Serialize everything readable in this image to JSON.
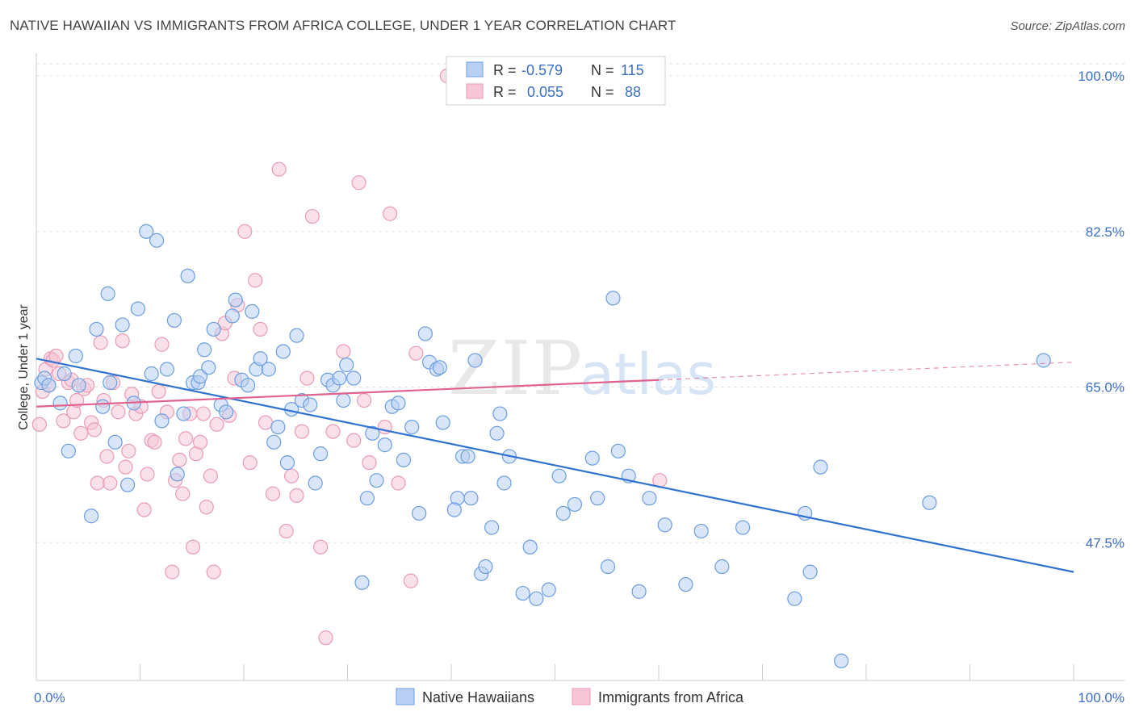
{
  "title": "NATIVE HAWAIIAN VS IMMIGRANTS FROM AFRICA COLLEGE, UNDER 1 YEAR CORRELATION CHART",
  "source": "Source: ZipAtlas.com",
  "watermark": {
    "zip": "ZIP",
    "atlas": "atlas"
  },
  "chart_data": {
    "type": "scatter",
    "title": "NATIVE HAWAIIAN VS IMMIGRANTS FROM AFRICA COLLEGE, UNDER 1 YEAR CORRELATION CHART",
    "xlabel": "",
    "ylabel": "College, Under 1 year",
    "xlim": [
      0,
      100
    ],
    "ylim": [
      32,
      102
    ],
    "x_tick_labels": [
      "0.0%",
      "100.0%"
    ],
    "y_ticks": [
      47.5,
      65.0,
      82.5,
      100.0
    ],
    "y_tick_labels": [
      "47.5%",
      "65.0%",
      "82.5%",
      "100.0%"
    ],
    "grid": "horizontal dashed",
    "legend_placement": "top-center",
    "series": [
      {
        "name": "Native Hawaiians",
        "color": "#6b9ee0",
        "fill": "#b9d0f3",
        "line_color": "#3072d0",
        "R": "-0.579",
        "N": "115",
        "trend": {
          "x": [
            0,
            100
          ],
          "y": [
            68.2,
            44.2
          ]
        },
        "points": [
          [
            0.5,
            65.5
          ],
          [
            0.8,
            66
          ],
          [
            1.2,
            65.2
          ],
          [
            2.3,
            63.2
          ],
          [
            2.7,
            66.5
          ],
          [
            3.1,
            57.8
          ],
          [
            3.8,
            68.5
          ],
          [
            4.1,
            65.2
          ],
          [
            5.3,
            50.5
          ],
          [
            5.8,
            71.5
          ],
          [
            6.4,
            62.8
          ],
          [
            6.9,
            75.5
          ],
          [
            7.1,
            65.5
          ],
          [
            7.6,
            58.8
          ],
          [
            8.3,
            72
          ],
          [
            8.8,
            54
          ],
          [
            9.4,
            63.2
          ],
          [
            9.8,
            73.8
          ],
          [
            10.6,
            82.5
          ],
          [
            11.1,
            66.5
          ],
          [
            11.6,
            81.5
          ],
          [
            12.1,
            61.2
          ],
          [
            12.6,
            67
          ],
          [
            13.3,
            72.5
          ],
          [
            13.6,
            55.2
          ],
          [
            14.2,
            62
          ],
          [
            14.6,
            77.5
          ],
          [
            15.1,
            65.5
          ],
          [
            15.6,
            65.5
          ],
          [
            15.8,
            66.2
          ],
          [
            16.2,
            69.2
          ],
          [
            16.6,
            67.2
          ],
          [
            17.1,
            71.5
          ],
          [
            17.8,
            63
          ],
          [
            18.3,
            62.2
          ],
          [
            18.9,
            73
          ],
          [
            19.2,
            74.8
          ],
          [
            19.8,
            65.8
          ],
          [
            20.4,
            65.2
          ],
          [
            20.8,
            73.5
          ],
          [
            21.2,
            67
          ],
          [
            21.6,
            68.2
          ],
          [
            22.4,
            67
          ],
          [
            22.9,
            58.8
          ],
          [
            23.3,
            60.5
          ],
          [
            23.8,
            69
          ],
          [
            24.2,
            56.5
          ],
          [
            24.6,
            62.5
          ],
          [
            25.1,
            70.8
          ],
          [
            25.6,
            63.5
          ],
          [
            26.4,
            63
          ],
          [
            26.9,
            54.2
          ],
          [
            27.4,
            57.5
          ],
          [
            28.1,
            65.8
          ],
          [
            28.6,
            65.2
          ],
          [
            29.2,
            66
          ],
          [
            29.6,
            63.5
          ],
          [
            29.9,
            67.5
          ],
          [
            30.6,
            66
          ],
          [
            31.4,
            43
          ],
          [
            31.9,
            52.5
          ],
          [
            32.4,
            59.8
          ],
          [
            32.8,
            54.5
          ],
          [
            33.6,
            58.5
          ],
          [
            34.3,
            62.8
          ],
          [
            34.9,
            63.2
          ],
          [
            35.4,
            56.8
          ],
          [
            36.2,
            60.5
          ],
          [
            36.9,
            50.8
          ],
          [
            37.5,
            71
          ],
          [
            37.9,
            67.8
          ],
          [
            38.6,
            67
          ],
          [
            38.9,
            67.2
          ],
          [
            39.2,
            61
          ],
          [
            40.6,
            52.5
          ],
          [
            40.3,
            51.2
          ],
          [
            41.1,
            57.2
          ],
          [
            41.6,
            57.2
          ],
          [
            41.9,
            52.5
          ],
          [
            42.3,
            68
          ],
          [
            42.9,
            44
          ],
          [
            43.3,
            44.8
          ],
          [
            43.9,
            49.2
          ],
          [
            44.4,
            59.8
          ],
          [
            44.7,
            62
          ],
          [
            45.1,
            54.2
          ],
          [
            45.6,
            57.2
          ],
          [
            46.9,
            41.8
          ],
          [
            47.6,
            47
          ],
          [
            48.2,
            41.2
          ],
          [
            49.4,
            42.2
          ],
          [
            50.4,
            55
          ],
          [
            50.8,
            50.8
          ],
          [
            51.9,
            51.8
          ],
          [
            53.6,
            57
          ],
          [
            54.1,
            52.5
          ],
          [
            55.1,
            44.8
          ],
          [
            55.6,
            75
          ],
          [
            56.1,
            57.8
          ],
          [
            57.1,
            55
          ],
          [
            58.1,
            42
          ],
          [
            59.1,
            52.5
          ],
          [
            60.6,
            49.5
          ],
          [
            62.6,
            42.8
          ],
          [
            64.1,
            48.8
          ],
          [
            66.1,
            44.8
          ],
          [
            68.1,
            49.2
          ],
          [
            73.1,
            41.2
          ],
          [
            74.1,
            50.8
          ],
          [
            74.6,
            44.2
          ],
          [
            75.6,
            56
          ],
          [
            77.6,
            34.2
          ],
          [
            86.1,
            52
          ],
          [
            97.1,
            68
          ]
        ]
      },
      {
        "name": "Immigrants from Africa",
        "color": "#e99bb5",
        "fill": "#f6c6d6",
        "line_color": "#e0628e",
        "R": "0.055",
        "N": "88",
        "trend": {
          "x": [
            0,
            60
          ],
          "y": [
            62.8,
            65.8
          ]
        },
        "points": [
          [
            0.3,
            60.8
          ],
          [
            0.6,
            64.5
          ],
          [
            0.9,
            67
          ],
          [
            1.2,
            65.2
          ],
          [
            1.4,
            68.2
          ],
          [
            1.6,
            68
          ],
          [
            1.9,
            68.5
          ],
          [
            2.2,
            66.5
          ],
          [
            2.6,
            61.2
          ],
          [
            3.1,
            65.5
          ],
          [
            3.4,
            65.8
          ],
          [
            3.6,
            62.2
          ],
          [
            3.9,
            63.5
          ],
          [
            4.3,
            59.8
          ],
          [
            4.6,
            64.8
          ],
          [
            4.9,
            65.2
          ],
          [
            5.3,
            61
          ],
          [
            5.6,
            60.2
          ],
          [
            5.9,
            54.2
          ],
          [
            6.2,
            70
          ],
          [
            6.5,
            63.5
          ],
          [
            6.8,
            57.2
          ],
          [
            7.1,
            54.2
          ],
          [
            7.4,
            65.5
          ],
          [
            7.9,
            62.2
          ],
          [
            8.3,
            70.2
          ],
          [
            8.6,
            56
          ],
          [
            8.9,
            57.8
          ],
          [
            9.2,
            64.2
          ],
          [
            9.6,
            62
          ],
          [
            10.1,
            62.8
          ],
          [
            10.4,
            51.2
          ],
          [
            10.7,
            55.2
          ],
          [
            11.1,
            59
          ],
          [
            11.4,
            58.8
          ],
          [
            11.8,
            64.5
          ],
          [
            12.1,
            69.8
          ],
          [
            12.6,
            62.2
          ],
          [
            13.1,
            44.2
          ],
          [
            13.4,
            54.5
          ],
          [
            13.8,
            56.8
          ],
          [
            14.1,
            53
          ],
          [
            14.4,
            59.2
          ],
          [
            14.8,
            62
          ],
          [
            15.1,
            47
          ],
          [
            15.4,
            57.5
          ],
          [
            15.8,
            58.8
          ],
          [
            16.1,
            62
          ],
          [
            16.4,
            51.5
          ],
          [
            16.8,
            55
          ],
          [
            17.1,
            44.2
          ],
          [
            17.4,
            60.8
          ],
          [
            17.9,
            71
          ],
          [
            18.2,
            72.2
          ],
          [
            18.6,
            61.8
          ],
          [
            19.1,
            66
          ],
          [
            19.4,
            74.2
          ],
          [
            20.1,
            82.5
          ],
          [
            20.6,
            56.5
          ],
          [
            21.1,
            77
          ],
          [
            21.6,
            71.5
          ],
          [
            22.1,
            61
          ],
          [
            22.8,
            53
          ],
          [
            23.4,
            89.5
          ],
          [
            24.1,
            48.8
          ],
          [
            24.6,
            55
          ],
          [
            25.1,
            52.8
          ],
          [
            25.6,
            60
          ],
          [
            26.1,
            66
          ],
          [
            26.6,
            84.2
          ],
          [
            27.4,
            47
          ],
          [
            27.9,
            36.8
          ],
          [
            28.6,
            60
          ],
          [
            29.6,
            69
          ],
          [
            30.6,
            59
          ],
          [
            31.1,
            88
          ],
          [
            31.6,
            63.5
          ],
          [
            32.1,
            56.5
          ],
          [
            33.6,
            60.5
          ],
          [
            34.1,
            84.5
          ],
          [
            34.9,
            54.2
          ],
          [
            36.1,
            43.2
          ],
          [
            36.6,
            68.8
          ],
          [
            39.6,
            100
          ],
          [
            60.1,
            54.5
          ]
        ]
      }
    ]
  },
  "legend": {
    "r_label": "R =",
    "n_label": "N =",
    "series1_r": "-0.579",
    "series1_n": "115",
    "series2_r": "0.055",
    "series2_n": "88"
  },
  "bottom_legend": {
    "series1": "Native Hawaiians",
    "series2": "Immigrants from Africa"
  }
}
